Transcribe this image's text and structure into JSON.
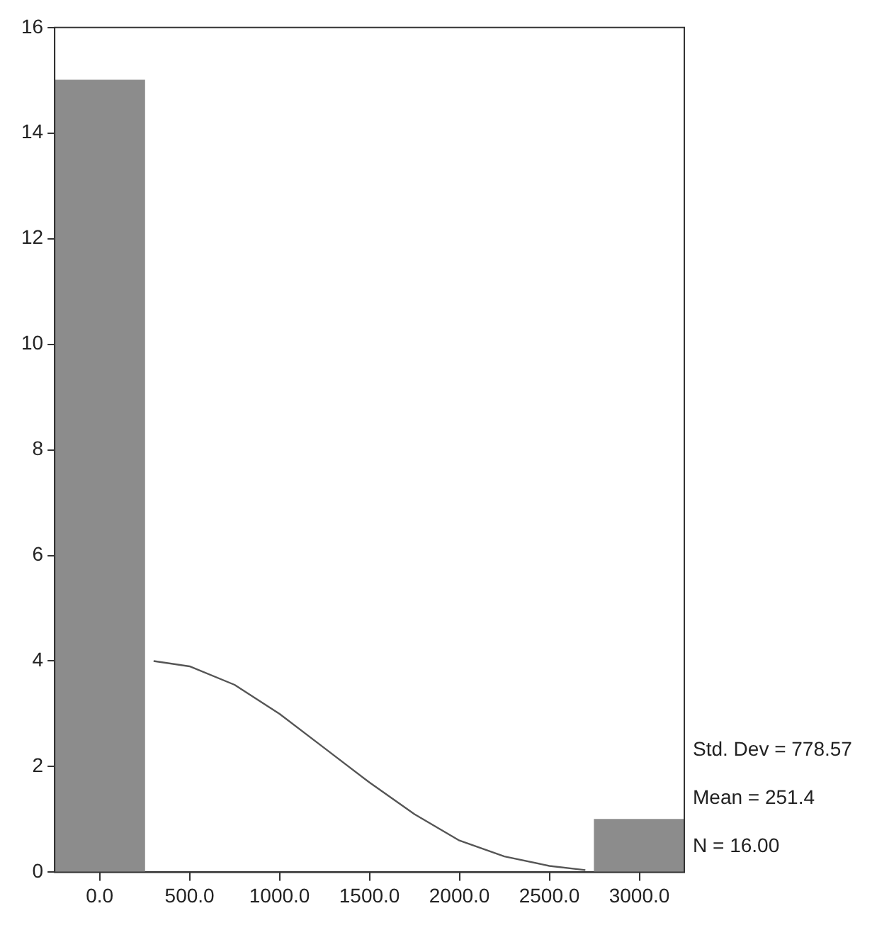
{
  "chart_data": {
    "type": "histogram",
    "bins": [
      -250,
      250,
      750,
      1250,
      1750,
      2250,
      2750,
      3250
    ],
    "values": [
      15,
      0,
      0,
      0,
      0,
      0,
      1
    ],
    "color": "#8c8c8c",
    "series": [
      {
        "type": "line",
        "color": "#555555",
        "x": [
          300,
          500,
          750,
          1000,
          1250,
          1500,
          1750,
          2000,
          2250,
          2500,
          2700
        ],
        "values": [
          4.0,
          3.9,
          3.55,
          3.0,
          2.35,
          1.7,
          1.1,
          0.6,
          0.3,
          0.12,
          0.04
        ]
      }
    ],
    "xlim": [
      -250,
      3250
    ],
    "xticks": [
      {
        "value": 0,
        "label": "0.0"
      },
      {
        "value": 500,
        "label": "500.0"
      },
      {
        "value": 1000,
        "label": "1000.0"
      },
      {
        "value": 1500,
        "label": "1500.0"
      },
      {
        "value": 2000,
        "label": "2000.0"
      },
      {
        "value": 2500,
        "label": "2500.0"
      },
      {
        "value": 3000,
        "label": "3000.0"
      }
    ],
    "ylim": [
      0,
      16
    ],
    "yticks": [
      0,
      2,
      4,
      6,
      8,
      10,
      12,
      14,
      16
    ],
    "grid": false,
    "marker": "none",
    "annotations": [
      "Std. Dev = 778.57",
      "Mean = 251.4",
      "N = 16.00"
    ]
  }
}
